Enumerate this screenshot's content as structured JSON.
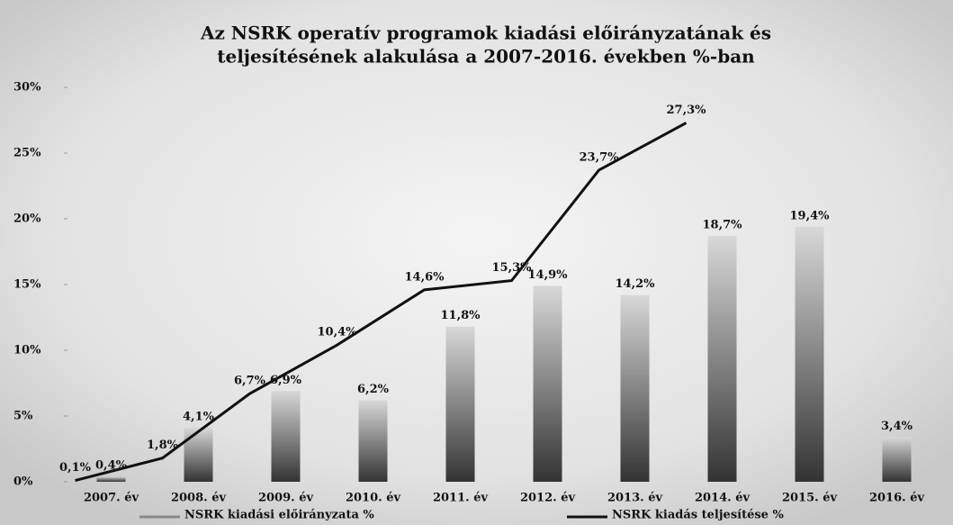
{
  "chart_data": {
    "type": "bar_line",
    "title": "Az NSRK operatív programok kiadási előirányzatának és",
    "subtitle": "teljesítésének alakulása a 2007-2016. években %-ban",
    "categories": [
      "2007. év",
      "2008. év",
      "2009. év",
      "2010. év",
      "2011. év",
      "2012. év",
      "2013. év",
      "2014. év",
      "2015. év",
      "2016. év"
    ],
    "series": [
      {
        "name": "NSRK kiadási előirányzata %",
        "type": "bar",
        "color": "#333333",
        "values": [
          0.4,
          4.1,
          6.9,
          6.2,
          11.8,
          14.9,
          14.2,
          18.7,
          19.4,
          3.4
        ],
        "value_labels": [
          "0,4%",
          "4,1%",
          "6,9%",
          "6,2%",
          "11,8%",
          "14,9%",
          "14,2%",
          "18,7%",
          "19,4%",
          "3,4%"
        ]
      },
      {
        "name": "NSRK kiadás teljesítése %",
        "type": "line",
        "color": "#111111",
        "values": [
          0.1,
          1.8,
          6.7,
          10.4,
          14.6,
          15.3,
          23.7,
          27.3,
          null,
          null
        ],
        "value_labels": [
          "0,1%",
          "1,8%",
          "6,7%",
          "10,4%",
          "14,6%",
          "15,3%",
          "23,7%",
          "27,3%",
          null,
          null
        ]
      }
    ],
    "ylim": [
      0,
      30
    ],
    "yticks": [
      {
        "value": 0,
        "label": "0%"
      },
      {
        "value": 5,
        "label": "5%"
      },
      {
        "value": 10,
        "label": "10%"
      },
      {
        "value": 15,
        "label": "15%"
      },
      {
        "value": 20,
        "label": "20%"
      },
      {
        "value": 25,
        "label": "25%"
      },
      {
        "value": 30,
        "label": "30%"
      }
    ],
    "legend": "bottom"
  }
}
